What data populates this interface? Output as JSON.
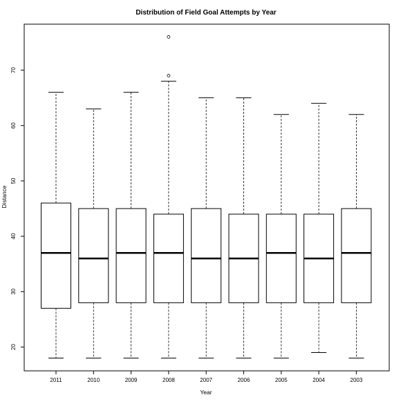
{
  "chart_data": {
    "type": "box",
    "title": "Distribution of Field Goal Attempts by Year",
    "xlabel": "Year",
    "ylabel": "Distance",
    "ylim": [
      15.7,
      78.3
    ],
    "yticks": [
      20,
      30,
      40,
      50,
      60,
      70
    ],
    "grid": false,
    "categories": [
      "2011",
      "2010",
      "2009",
      "2008",
      "2007",
      "2006",
      "2005",
      "2004",
      "2003"
    ],
    "boxes": [
      {
        "year": "2011",
        "whisker_low": 18,
        "q1": 27,
        "median": 37,
        "q3": 46,
        "whisker_high": 66,
        "outliers": []
      },
      {
        "year": "2010",
        "whisker_low": 18,
        "q1": 28,
        "median": 36,
        "q3": 45,
        "whisker_high": 63,
        "outliers": []
      },
      {
        "year": "2009",
        "whisker_low": 18,
        "q1": 28,
        "median": 37,
        "q3": 45,
        "whisker_high": 66,
        "outliers": []
      },
      {
        "year": "2008",
        "whisker_low": 18,
        "q1": 28,
        "median": 37,
        "q3": 44,
        "whisker_high": 68,
        "outliers": [
          69,
          76
        ]
      },
      {
        "year": "2007",
        "whisker_low": 18,
        "q1": 28,
        "median": 36,
        "q3": 45,
        "whisker_high": 65,
        "outliers": []
      },
      {
        "year": "2006",
        "whisker_low": 18,
        "q1": 28,
        "median": 36,
        "q3": 44,
        "whisker_high": 65,
        "outliers": []
      },
      {
        "year": "2005",
        "whisker_low": 18,
        "q1": 28,
        "median": 37,
        "q3": 44,
        "whisker_high": 62,
        "outliers": []
      },
      {
        "year": "2004",
        "whisker_low": 19,
        "q1": 28,
        "median": 36,
        "q3": 44,
        "whisker_high": 64,
        "outliers": []
      },
      {
        "year": "2003",
        "whisker_low": 18,
        "q1": 28,
        "median": 37,
        "q3": 45,
        "whisker_high": 62,
        "outliers": []
      }
    ]
  }
}
